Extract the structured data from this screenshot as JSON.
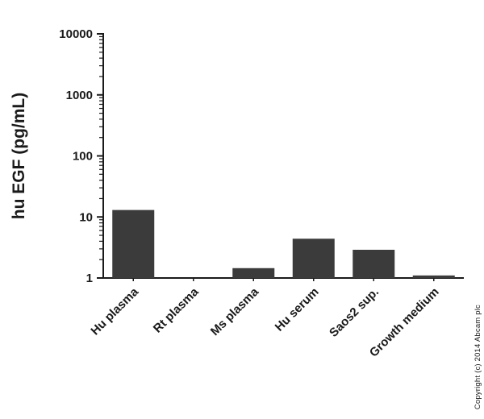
{
  "chart_data": {
    "type": "bar",
    "title": "",
    "xlabel": "",
    "ylabel": "hu EGF (pg/mL)",
    "categories": [
      "Hu plasma",
      "Rt plasma",
      "Ms plasma",
      "Hu serum",
      "Saos2 sup.",
      "Growth medium"
    ],
    "values": [
      13,
      1.0,
      1.45,
      4.4,
      2.9,
      1.1
    ],
    "yscale": "log",
    "ylim": [
      1,
      10000
    ],
    "ytick_labels": [
      "1",
      "10",
      "100",
      "1000",
      "10000"
    ],
    "grid": false,
    "legend": false,
    "bar_color": "#3b3b3b",
    "axis_color": "#1a1a1a"
  },
  "footer": {
    "copyright": "Copyright (c) 2014 Abcam plc"
  }
}
